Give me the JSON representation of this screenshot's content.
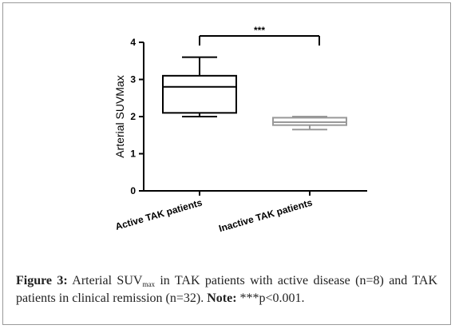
{
  "chart_data": {
    "type": "box",
    "ylabel": "Arterial  SUVMax",
    "ylim": [
      0,
      4
    ],
    "yticks": [
      "0",
      "1",
      "2",
      "3",
      "4"
    ],
    "categories": [
      "Active TAK patients",
      "Inactive TAK patients"
    ],
    "boxes": [
      {
        "name": "Active TAK patients",
        "min": 2.0,
        "q1": 2.1,
        "median": 2.8,
        "q3": 3.1,
        "max": 3.6,
        "color": "#000000"
      },
      {
        "name": "Inactive TAK patients",
        "min": 1.65,
        "q1": 1.77,
        "median": 1.85,
        "q3": 1.97,
        "max": 2.0,
        "color": "#999999"
      }
    ],
    "significance": "***",
    "grid": false
  },
  "caption": {
    "label": "Figure 3:",
    "text_before": " Arterial SUV",
    "subscript": "max",
    "text_middle": " in TAK patients with active disease (n=8) and TAK patients in clinical remission (n=32). ",
    "note_label": "Note:",
    "note_text": " ***p<0.001."
  }
}
